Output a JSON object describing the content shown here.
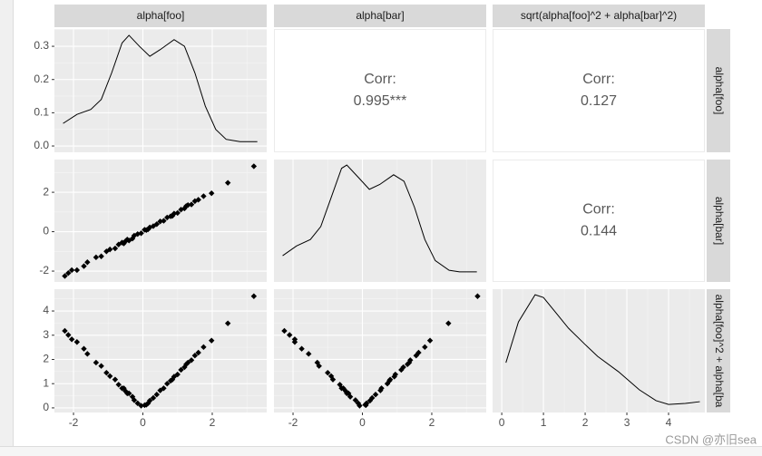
{
  "strips": {
    "columns": [
      "alpha[foo]",
      "alpha[bar]",
      "sqrt(alpha[foo]^2 + alpha[bar]^2)"
    ],
    "rows": [
      "alpha[foo]",
      "alpha[bar]",
      "alpha[foo]^2 + alpha[ba"
    ]
  },
  "watermark": "CSDN @亦旧sea",
  "chart_data": [
    {
      "type": "density",
      "xlim": [
        -2.55,
        3.57
      ],
      "ylim": [
        -0.019,
        0.352
      ],
      "xticks": [
        -2,
        0,
        2
      ],
      "yticks": [
        {
          "value": 0,
          "label": "0.0"
        },
        0.1,
        0.2,
        0.3
      ],
      "color": "#000000",
      "x": [
        -2.3,
        -1.9,
        -1.5,
        -1.2,
        -0.9,
        -0.6,
        -0.4,
        -0.1,
        0.2,
        0.5,
        0.9,
        1.2,
        1.5,
        1.8,
        2.1,
        2.4,
        2.8,
        3.3
      ],
      "y": [
        0.068,
        0.095,
        0.11,
        0.14,
        0.22,
        0.31,
        0.333,
        0.3,
        0.27,
        0.29,
        0.32,
        0.3,
        0.22,
        0.12,
        0.05,
        0.02,
        0.013,
        0.013
      ]
    },
    {
      "type": "text",
      "text": "Corr:",
      "values": [
        0.995
      ],
      "value_labels": [
        "0.995***"
      ]
    },
    {
      "type": "text",
      "text": "Corr:",
      "values": [
        0.127
      ]
    },
    {
      "type": "scatter",
      "xlim": [
        -2.55,
        3.57
      ],
      "ylim": [
        -2.55,
        3.66
      ],
      "xticks": [
        -2,
        0,
        2
      ],
      "yticks": [
        -2,
        0,
        2
      ],
      "color": "#000000",
      "x": [
        3.2,
        2.45,
        1.98,
        1.75,
        1.6,
        1.5,
        1.4,
        1.3,
        1.2,
        1.1,
        1.0,
        0.9,
        0.8,
        0.7,
        0.6,
        0.5,
        0.4,
        0.3,
        0.2,
        0.1,
        0.05,
        -0.05,
        -0.15,
        -0.25,
        -0.3,
        -0.4,
        -0.5,
        -0.55,
        -0.6,
        -0.7,
        -0.8,
        -0.95,
        -1.05,
        -1.2,
        -1.35,
        -1.6,
        -1.7,
        -1.9,
        -2.05,
        -2.15,
        -2.25,
        0.85,
        -0.45,
        1.25,
        0.15
      ],
      "y": [
        3.32,
        2.48,
        1.95,
        1.8,
        1.62,
        1.55,
        1.38,
        1.35,
        1.18,
        1.12,
        0.95,
        0.92,
        0.78,
        0.72,
        0.55,
        0.52,
        0.38,
        0.28,
        0.22,
        0.08,
        0.1,
        -0.08,
        -0.12,
        -0.2,
        -0.35,
        -0.45,
        -0.48,
        -0.6,
        -0.55,
        -0.65,
        -0.85,
        -0.9,
        -1.0,
        -1.25,
        -1.3,
        -1.55,
        -1.75,
        -1.95,
        -1.95,
        -2.1,
        -2.25,
        0.8,
        -0.4,
        1.3,
        0.12
      ]
    },
    {
      "type": "density",
      "xlim": [
        -2.55,
        3.57
      ],
      "ylim": [
        -0.021,
        0.357
      ],
      "xticks": [
        -2,
        0,
        2
      ],
      "color": "#000000",
      "x": [
        -2.3,
        -1.9,
        -1.5,
        -1.2,
        -0.9,
        -0.6,
        -0.45,
        -0.1,
        0.2,
        0.5,
        0.9,
        1.2,
        1.5,
        1.8,
        2.1,
        2.5,
        2.8,
        3.3
      ],
      "y": [
        0.06,
        0.09,
        0.11,
        0.15,
        0.24,
        0.33,
        0.34,
        0.3,
        0.265,
        0.28,
        0.31,
        0.29,
        0.21,
        0.11,
        0.045,
        0.015,
        0.01,
        0.01
      ]
    },
    {
      "type": "text",
      "text": "Corr:",
      "values": [
        0.144
      ]
    },
    {
      "type": "scatter",
      "xlim": [
        -2.55,
        3.57
      ],
      "ylim": [
        -0.19,
        4.9
      ],
      "xticks": [
        -2,
        0,
        2
      ],
      "yticks": [
        0,
        1,
        2,
        3,
        4
      ],
      "color": "#000000",
      "x": [
        3.2,
        2.45,
        1.98,
        1.75,
        1.6,
        1.5,
        1.4,
        1.3,
        1.2,
        1.1,
        1.0,
        0.9,
        0.8,
        0.7,
        0.6,
        0.5,
        0.4,
        0.3,
        0.2,
        0.1,
        0.05,
        -0.05,
        -0.15,
        -0.25,
        -0.3,
        -0.4,
        -0.5,
        -0.55,
        -0.6,
        -0.7,
        -0.8,
        -0.95,
        -1.05,
        -1.2,
        -1.35,
        -1.6,
        -1.7,
        -1.9,
        -2.05,
        -2.15,
        -2.25,
        0.85,
        -0.45,
        1.25,
        0.15
      ],
      "y": [
        4.61,
        3.49,
        2.78,
        2.51,
        2.28,
        2.16,
        1.97,
        1.87,
        1.68,
        1.57,
        1.38,
        1.29,
        1.12,
        1.0,
        0.81,
        0.72,
        0.55,
        0.41,
        0.3,
        0.13,
        0.11,
        0.09,
        0.19,
        0.32,
        0.46,
        0.6,
        0.69,
        0.81,
        0.81,
        0.96,
        1.17,
        1.31,
        1.45,
        1.73,
        1.87,
        2.23,
        2.44,
        2.72,
        2.83,
        3.01,
        3.18,
        1.17,
        0.6,
        1.8,
        0.19
      ]
    },
    {
      "type": "scatter",
      "xlim": [
        -2.55,
        3.57
      ],
      "ylim": [
        -0.19,
        4.9
      ],
      "xticks": [
        -2,
        0,
        2
      ],
      "yticks": [
        0,
        1,
        2,
        3,
        4
      ],
      "color": "#000000",
      "x": [
        3.32,
        2.48,
        1.95,
        1.8,
        1.62,
        1.55,
        1.38,
        1.35,
        1.18,
        1.12,
        0.95,
        0.92,
        0.78,
        0.72,
        0.55,
        0.52,
        0.38,
        0.28,
        0.22,
        0.08,
        0.1,
        -0.08,
        -0.12,
        -0.2,
        -0.35,
        -0.45,
        -0.48,
        -0.6,
        -0.55,
        -0.65,
        -0.85,
        -0.9,
        -1.0,
        -1.25,
        -1.3,
        -1.55,
        -1.75,
        -1.95,
        -1.95,
        -2.1,
        -2.25,
        0.8,
        -0.4,
        1.3,
        0.12
      ],
      "y": [
        4.61,
        3.49,
        2.78,
        2.51,
        2.28,
        2.16,
        1.97,
        1.87,
        1.68,
        1.57,
        1.38,
        1.29,
        1.12,
        1.0,
        0.81,
        0.72,
        0.55,
        0.41,
        0.3,
        0.13,
        0.11,
        0.09,
        0.19,
        0.32,
        0.46,
        0.6,
        0.69,
        0.81,
        0.81,
        0.96,
        1.17,
        1.31,
        1.45,
        1.73,
        1.87,
        2.23,
        2.44,
        2.72,
        2.83,
        3.01,
        3.18,
        1.17,
        0.6,
        1.8,
        0.19
      ]
    },
    {
      "type": "density",
      "xlim": [
        -0.22,
        4.87
      ],
      "ylim": [
        -0.02,
        0.47
      ],
      "xticks": [
        0,
        1,
        2,
        3,
        4
      ],
      "color": "#000000",
      "x": [
        0.1,
        0.4,
        0.8,
        1.0,
        1.3,
        1.6,
        2.0,
        2.3,
        2.8,
        3.3,
        3.7,
        4.0,
        4.4,
        4.75
      ],
      "y": [
        0.178,
        0.34,
        0.448,
        0.437,
        0.376,
        0.315,
        0.25,
        0.203,
        0.142,
        0.07,
        0.027,
        0.012,
        0.016,
        0.023
      ]
    }
  ]
}
